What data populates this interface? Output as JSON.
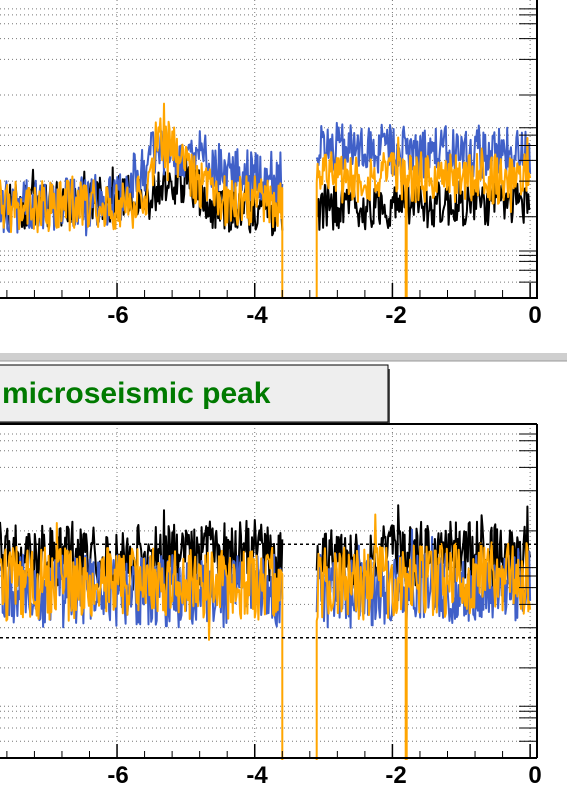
{
  "colors": {
    "series_black": "#000000",
    "series_blue": "#4060c8",
    "series_orange": "#ffa500",
    "title_text": "#007a00",
    "title_box_fill": "#eeeeee",
    "grid": "#777777",
    "divider": "#cfcfcf"
  },
  "chart_data": [
    {
      "type": "line",
      "title": "",
      "xlabel": "",
      "ylabel": "",
      "xlim": [
        -7.7,
        0.1
      ],
      "ylim": [
        0,
        1
      ],
      "x_ticks": [
        "-6",
        "-4",
        "-2",
        "0"
      ],
      "grid": true,
      "gaps": [
        [
          -3.6,
          -3.1
        ]
      ],
      "series": [
        {
          "color": "#000000",
          "baseline": 0.32,
          "noise": 0.035,
          "segments": [
            [
              -7.7,
              0.3
            ],
            [
              -5.5,
              0.34
            ],
            [
              -5.0,
              0.4
            ],
            [
              -4.6,
              0.3
            ],
            [
              -3.6,
              0.28
            ],
            [
              -3.1,
              0.3
            ],
            [
              0.0,
              0.32
            ]
          ]
        },
        {
          "color": "#4060c8",
          "baseline": 0.35,
          "noise": 0.04,
          "segments": [
            [
              -7.7,
              0.3
            ],
            [
              -6.0,
              0.33
            ],
            [
              -5.4,
              0.5
            ],
            [
              -4.8,
              0.48
            ],
            [
              -4.4,
              0.42
            ],
            [
              -3.6,
              0.4
            ],
            [
              -3.1,
              0.5
            ],
            [
              0.0,
              0.48
            ]
          ]
        },
        {
          "color": "#ffa500",
          "baseline": 0.33,
          "noise": 0.04,
          "segments": [
            [
              -7.7,
              0.3
            ],
            [
              -5.6,
              0.32
            ],
            [
              -5.4,
              0.55
            ],
            [
              -5.0,
              0.44
            ],
            [
              -4.6,
              0.33
            ],
            [
              -3.6,
              0.32
            ],
            [
              -3.1,
              0.4
            ],
            [
              0.0,
              0.4
            ]
          ]
        }
      ]
    },
    {
      "type": "line",
      "title": "microseismic peak",
      "xlabel": "",
      "ylabel": "",
      "xlim": [
        -7.7,
        0.1
      ],
      "ylim": [
        0,
        1
      ],
      "x_ticks": [
        "-6",
        "-4",
        "-2",
        "0"
      ],
      "grid": true,
      "gaps": [
        [
          -3.6,
          -3.1
        ]
      ],
      "reference_lines_y": [
        0.64,
        0.36
      ],
      "series": [
        {
          "color": "#000000",
          "baseline": 0.6,
          "noise": 0.045,
          "segments": [
            [
              -7.7,
              0.6
            ],
            [
              -5.5,
              0.6
            ],
            [
              -4.0,
              0.62
            ],
            [
              -3.1,
              0.58
            ],
            [
              -1.0,
              0.62
            ],
            [
              0.0,
              0.6
            ]
          ]
        },
        {
          "color": "#4060c8",
          "baseline": 0.5,
          "noise": 0.05,
          "segments": [
            [
              -7.7,
              0.5
            ],
            [
              -3.6,
              0.5
            ],
            [
              -3.1,
              0.5
            ],
            [
              0.0,
              0.52
            ]
          ]
        },
        {
          "color": "#ffa500",
          "baseline": 0.52,
          "noise": 0.05,
          "segments": [
            [
              -7.7,
              0.52
            ],
            [
              -3.6,
              0.52
            ],
            [
              -3.1,
              0.52
            ],
            [
              0.0,
              0.54
            ]
          ]
        }
      ]
    }
  ]
}
